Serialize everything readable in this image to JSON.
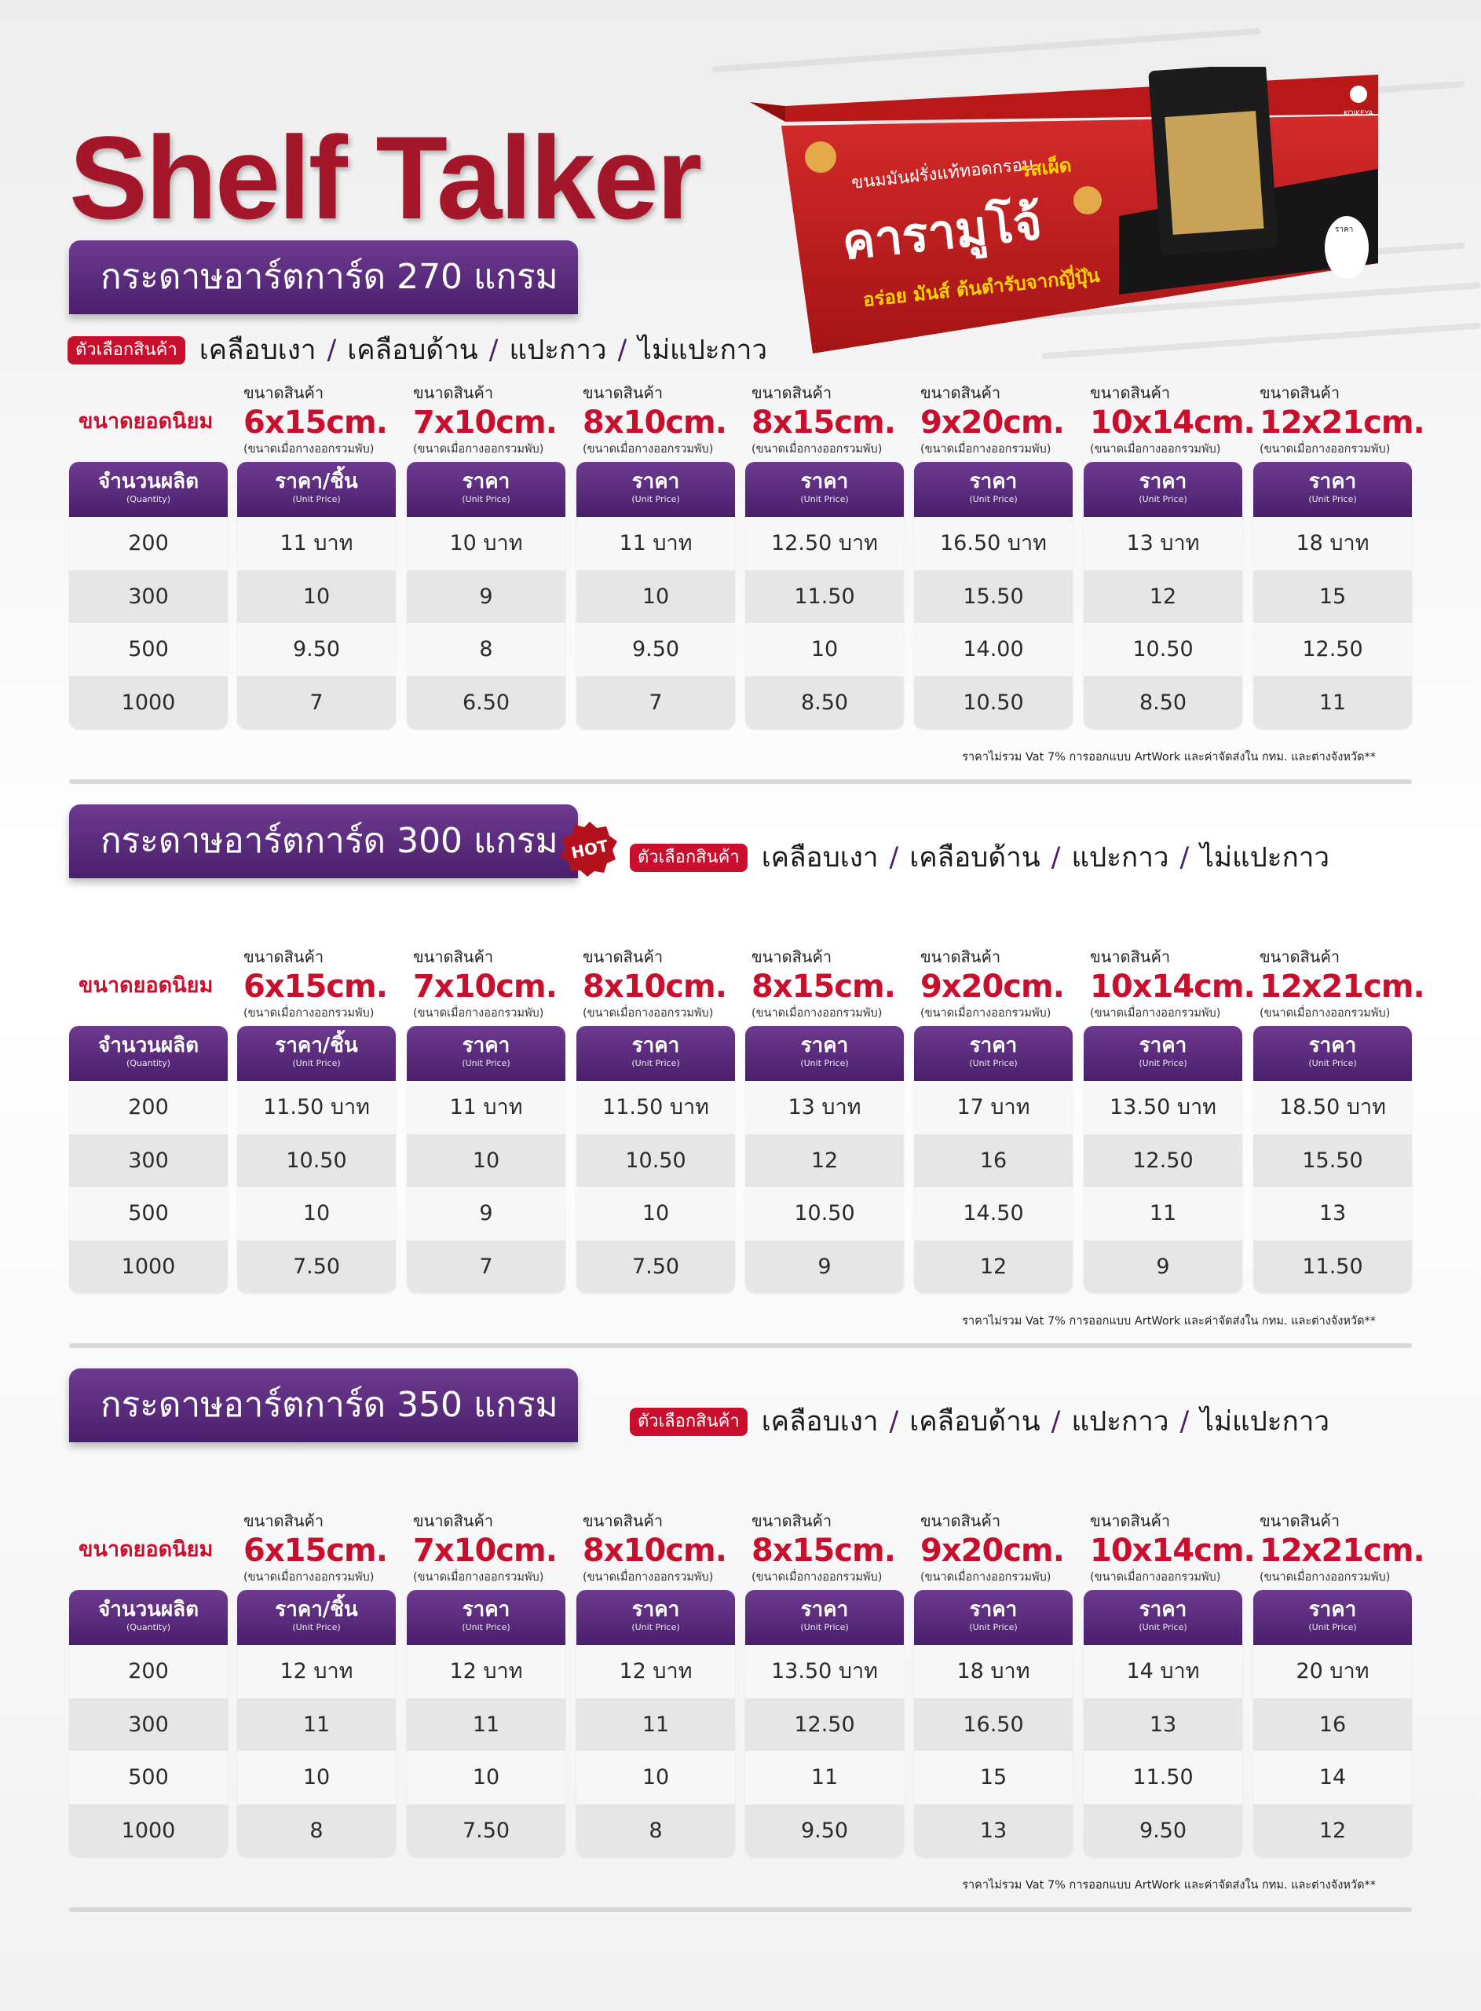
{
  "title": "Shelf Talker",
  "banner": {
    "brand_logo": "KOIKEYA",
    "tagline": "ขนมมันฝรั่งแท้ทอดกรอบ",
    "flavor": "รสเผ็ด",
    "product_name": "คารามูโจ้",
    "slogan": "อร่อย มันส์ ต้นตำรับจากญี่ปุ่น",
    "arrows": "››››",
    "price_tag": "ราคา"
  },
  "option_badge": "ตัวเลือกสินค้า",
  "options": [
    "เคลือบเงา",
    "เคลือบด้าน",
    "แปะกาว",
    "ไม่แปะกาว"
  ],
  "option_sep": "/",
  "popular_label": "ขนาดยอดนิยม",
  "size_top": "ขนาดสินค้า",
  "size_note": "(ขนาดเมื่อกางออกรวมพับ)",
  "sizes": [
    "6x15cm.",
    "7x10cm.",
    "8x10cm.",
    "8x15cm.",
    "9x20cm.",
    "10x14cm.",
    "12x21cm."
  ],
  "qty_header": "จำนวนผลิต",
  "qty_header_en": "(Quantity)",
  "price_header_first": "ราคา/ชิ้น",
  "price_header": "ราคา",
  "price_header_en": "(Unit Price)",
  "quantities": [
    "200",
    "300",
    "500",
    "1000"
  ],
  "hot_label": "HOT",
  "footnote": "ราคาไม่รวม Vat 7% การออกแบบ ArtWork และค่าจัดส่งใน กทม. และต่างจังหวัด**",
  "sections": [
    {
      "title": "กระดาษอาร์ตการ์ด 270 แกรม",
      "hot": false,
      "prices": [
        [
          "11 บาท",
          "10",
          "9.50",
          "7"
        ],
        [
          "10 บาท",
          "9",
          "8",
          "6.50"
        ],
        [
          "11 บาท",
          "10",
          "9.50",
          "7"
        ],
        [
          "12.50 บาท",
          "11.50",
          "10",
          "8.50"
        ],
        [
          "16.50 บาท",
          "15.50",
          "14.00",
          "10.50"
        ],
        [
          "13 บาท",
          "12",
          "10.50",
          "8.50"
        ],
        [
          "18 บาท",
          "15",
          "12.50",
          "11"
        ]
      ]
    },
    {
      "title": "กระดาษอาร์ตการ์ด 300 แกรม",
      "hot": true,
      "prices": [
        [
          "11.50 บาท",
          "10.50",
          "10",
          "7.50"
        ],
        [
          "11 บาท",
          "10",
          "9",
          "7"
        ],
        [
          "11.50 บาท",
          "10.50",
          "10",
          "7.50"
        ],
        [
          "13 บาท",
          "12",
          "10.50",
          "9"
        ],
        [
          "17 บาท",
          "16",
          "14.50",
          "12"
        ],
        [
          "13.50 บาท",
          "12.50",
          "11",
          "9"
        ],
        [
          "18.50 บาท",
          "15.50",
          "13",
          "11.50"
        ]
      ]
    },
    {
      "title": "กระดาษอาร์ตการ์ด 350 แกรม",
      "hot": false,
      "prices": [
        [
          "12 บาท",
          "11",
          "10",
          "8"
        ],
        [
          "12 บาท",
          "11",
          "10",
          "7.50"
        ],
        [
          "12 บาท",
          "11",
          "10",
          "8"
        ],
        [
          "13.50 บาท",
          "12.50",
          "11",
          "9.50"
        ],
        [
          "18 บาท",
          "16.50",
          "15",
          "13"
        ],
        [
          "14 บาท",
          "13",
          "11.50",
          "9.50"
        ],
        [
          "20 บาท",
          "16",
          "14",
          "12"
        ]
      ]
    }
  ],
  "colors": {
    "title_red": "#a4162a",
    "accent_red": "#c8102e",
    "purple": "#4a1f6c",
    "purple_light": "#6d3a8f"
  }
}
